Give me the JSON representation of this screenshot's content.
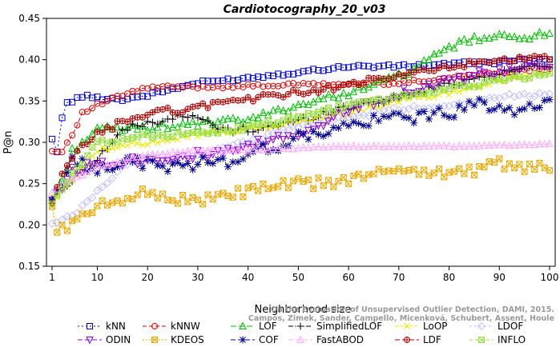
{
  "chart_data": {
    "type": "line",
    "title": "Cardiotocography_20_v03",
    "xlabel": "Neighborhood size",
    "ylabel": "P@n",
    "xlim": [
      1,
      100
    ],
    "ylim": [
      0.15,
      0.45
    ],
    "xticks": [
      1,
      10,
      20,
      30,
      40,
      50,
      60,
      70,
      80,
      90,
      100
    ],
    "yticks": [
      0.15,
      0.2,
      0.25,
      0.3,
      0.35,
      0.4,
      0.45
    ],
    "ytick_labels": [
      "0.15",
      "0.20",
      "0.25",
      "0.30",
      "0.35",
      "0.40",
      "0.45"
    ],
    "grid": false,
    "legend_position": "bottom",
    "watermark": [
      "Campos, Zimek, Sander, Campello, Micenková, Schubert, Assent, Houle",
      "On the Evaluation of Unsupervised Outlier Detection, DAMI, 2015."
    ],
    "series": [
      {
        "name": "kNN",
        "color": "#0000cc",
        "marker": "square",
        "dash": "2,3",
        "anchors": [
          [
            1,
            0.303
          ],
          [
            2,
            0.29
          ],
          [
            3,
            0.33
          ],
          [
            4,
            0.347
          ],
          [
            5,
            0.35
          ],
          [
            7,
            0.356
          ],
          [
            10,
            0.354
          ],
          [
            15,
            0.352
          ],
          [
            20,
            0.357
          ],
          [
            30,
            0.372
          ],
          [
            40,
            0.378
          ],
          [
            50,
            0.385
          ],
          [
            60,
            0.392
          ],
          [
            70,
            0.392
          ],
          [
            80,
            0.395
          ],
          [
            90,
            0.397
          ],
          [
            100,
            0.402
          ]
        ],
        "amp": 0.002
      },
      {
        "name": "kNNW",
        "color": "#dd0000",
        "marker": "circle",
        "dash": "5,3",
        "anchors": [
          [
            1,
            0.289
          ],
          [
            3,
            0.289
          ],
          [
            5,
            0.31
          ],
          [
            7,
            0.335
          ],
          [
            10,
            0.345
          ],
          [
            15,
            0.357
          ],
          [
            20,
            0.366
          ],
          [
            25,
            0.367
          ],
          [
            30,
            0.367
          ],
          [
            40,
            0.368
          ],
          [
            50,
            0.37
          ],
          [
            60,
            0.37
          ],
          [
            70,
            0.372
          ],
          [
            80,
            0.378
          ],
          [
            90,
            0.385
          ],
          [
            100,
            0.39
          ]
        ],
        "amp": 0.002
      },
      {
        "name": "LOF",
        "color": "#00bb00",
        "marker": "triangle",
        "dash": "7,3",
        "anchors": [
          [
            1,
            0.232
          ],
          [
            3,
            0.25
          ],
          [
            5,
            0.29
          ],
          [
            7,
            0.3
          ],
          [
            10,
            0.315
          ],
          [
            20,
            0.318
          ],
          [
            30,
            0.322
          ],
          [
            40,
            0.327
          ],
          [
            50,
            0.345
          ],
          [
            60,
            0.36
          ],
          [
            70,
            0.38
          ],
          [
            75,
            0.395
          ],
          [
            80,
            0.415
          ],
          [
            85,
            0.425
          ],
          [
            90,
            0.427
          ],
          [
            100,
            0.43
          ]
        ],
        "amp": 0.004
      },
      {
        "name": "SimplifiedLOF",
        "color": "#000000",
        "marker": "plus",
        "dash": "6,2,1,2",
        "anchors": [
          [
            1,
            0.228
          ],
          [
            3,
            0.245
          ],
          [
            5,
            0.255
          ],
          [
            10,
            0.28
          ],
          [
            15,
            0.315
          ],
          [
            20,
            0.323
          ],
          [
            25,
            0.33
          ],
          [
            30,
            0.33
          ],
          [
            35,
            0.315
          ],
          [
            40,
            0.315
          ],
          [
            45,
            0.32
          ],
          [
            50,
            0.325
          ],
          [
            55,
            0.335
          ],
          [
            60,
            0.343
          ],
          [
            70,
            0.355
          ],
          [
            80,
            0.37
          ],
          [
            90,
            0.385
          ],
          [
            100,
            0.395
          ]
        ],
        "amp": 0.004
      },
      {
        "name": "LoOP",
        "color": "#e8e800",
        "marker": "x",
        "dash": "4,2",
        "anchors": [
          [
            1,
            0.225
          ],
          [
            5,
            0.255
          ],
          [
            10,
            0.29
          ],
          [
            20,
            0.3
          ],
          [
            30,
            0.31
          ],
          [
            40,
            0.315
          ],
          [
            50,
            0.325
          ],
          [
            60,
            0.335
          ],
          [
            70,
            0.35
          ],
          [
            80,
            0.36
          ],
          [
            90,
            0.375
          ],
          [
            100,
            0.385
          ]
        ],
        "amp": 0.003
      },
      {
        "name": "LDOF",
        "color": "#c0c0ff",
        "marker": "diamond",
        "dash": "3,3",
        "anchors": [
          [
            1,
            0.2
          ],
          [
            5,
            0.21
          ],
          [
            10,
            0.24
          ],
          [
            15,
            0.27
          ],
          [
            20,
            0.28
          ],
          [
            30,
            0.285
          ],
          [
            40,
            0.3
          ],
          [
            50,
            0.32
          ],
          [
            60,
            0.33
          ],
          [
            70,
            0.34
          ],
          [
            80,
            0.345
          ],
          [
            90,
            0.355
          ],
          [
            100,
            0.36
          ]
        ],
        "amp": 0.003
      },
      {
        "name": "ODIN",
        "color": "#8800cc",
        "marker": "triangle-down",
        "dash": "6,3",
        "anchors": [
          [
            1,
            0.23
          ],
          [
            5,
            0.265
          ],
          [
            10,
            0.275
          ],
          [
            20,
            0.28
          ],
          [
            30,
            0.285
          ],
          [
            35,
            0.285
          ],
          [
            40,
            0.295
          ],
          [
            50,
            0.31
          ],
          [
            55,
            0.325
          ],
          [
            60,
            0.34
          ],
          [
            70,
            0.36
          ],
          [
            80,
            0.375
          ],
          [
            90,
            0.385
          ],
          [
            100,
            0.393
          ]
        ],
        "amp": 0.006
      },
      {
        "name": "KDEOS",
        "color": "#e8a800",
        "marker": "square-x",
        "dash": "2,2",
        "anchors": [
          [
            1,
            0.222
          ],
          [
            2,
            0.19
          ],
          [
            4,
            0.2
          ],
          [
            6,
            0.205
          ],
          [
            10,
            0.22
          ],
          [
            15,
            0.233
          ],
          [
            20,
            0.24
          ],
          [
            25,
            0.232
          ],
          [
            30,
            0.23
          ],
          [
            35,
            0.233
          ],
          [
            40,
            0.242
          ],
          [
            45,
            0.245
          ],
          [
            50,
            0.25
          ],
          [
            55,
            0.25
          ],
          [
            60,
            0.255
          ],
          [
            65,
            0.26
          ],
          [
            70,
            0.27
          ],
          [
            75,
            0.265
          ],
          [
            80,
            0.262
          ],
          [
            85,
            0.267
          ],
          [
            90,
            0.275
          ],
          [
            95,
            0.268
          ],
          [
            100,
            0.268
          ]
        ],
        "amp": 0.007
      },
      {
        "name": "COF",
        "color": "#000088",
        "marker": "star",
        "dash": "6,3",
        "anchors": [
          [
            1,
            0.23
          ],
          [
            5,
            0.275
          ],
          [
            10,
            0.27
          ],
          [
            15,
            0.275
          ],
          [
            20,
            0.275
          ],
          [
            25,
            0.27
          ],
          [
            30,
            0.275
          ],
          [
            35,
            0.275
          ],
          [
            40,
            0.285
          ],
          [
            50,
            0.305
          ],
          [
            60,
            0.32
          ],
          [
            70,
            0.33
          ],
          [
            80,
            0.335
          ],
          [
            85,
            0.345
          ],
          [
            90,
            0.345
          ],
          [
            95,
            0.338
          ],
          [
            100,
            0.345
          ]
        ],
        "amp": 0.008
      },
      {
        "name": "FastABOD",
        "color": "#ffaaff",
        "marker": "triangle-dot",
        "dash": "6,3",
        "anchors": [
          [
            1,
            0.24
          ],
          [
            5,
            0.255
          ],
          [
            10,
            0.27
          ],
          [
            20,
            0.285
          ],
          [
            30,
            0.29
          ],
          [
            40,
            0.29
          ],
          [
            50,
            0.293
          ],
          [
            60,
            0.295
          ],
          [
            70,
            0.295
          ],
          [
            80,
            0.295
          ],
          [
            90,
            0.296
          ],
          [
            100,
            0.298
          ]
        ],
        "amp": 0.001
      },
      {
        "name": "LDF",
        "color": "#aa0000",
        "marker": "circle-plus",
        "dash": "6,3",
        "anchors": [
          [
            1,
            0.225
          ],
          [
            3,
            0.26
          ],
          [
            5,
            0.28
          ],
          [
            8,
            0.3
          ],
          [
            10,
            0.31
          ],
          [
            15,
            0.325
          ],
          [
            20,
            0.335
          ],
          [
            30,
            0.342
          ],
          [
            35,
            0.35
          ],
          [
            40,
            0.352
          ],
          [
            50,
            0.36
          ],
          [
            60,
            0.37
          ],
          [
            70,
            0.38
          ],
          [
            80,
            0.392
          ],
          [
            90,
            0.398
          ],
          [
            100,
            0.402
          ]
        ],
        "amp": 0.004
      },
      {
        "name": "INFLO",
        "color": "#99dd44",
        "marker": "square-x",
        "dash": "4,3",
        "anchors": [
          [
            1,
            0.225
          ],
          [
            5,
            0.26
          ],
          [
            10,
            0.3
          ],
          [
            20,
            0.308
          ],
          [
            30,
            0.31
          ],
          [
            40,
            0.318
          ],
          [
            50,
            0.33
          ],
          [
            60,
            0.345
          ],
          [
            70,
            0.355
          ],
          [
            80,
            0.365
          ],
          [
            90,
            0.375
          ],
          [
            100,
            0.383
          ]
        ],
        "amp": 0.003
      }
    ]
  }
}
